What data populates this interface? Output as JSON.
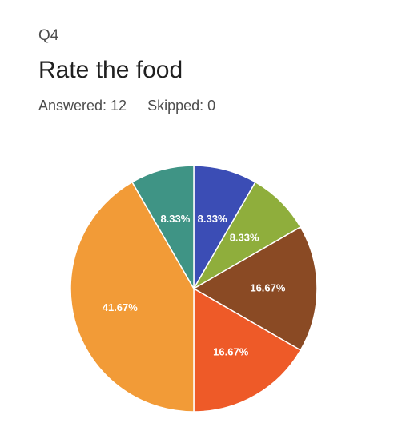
{
  "question": {
    "number": "Q4",
    "title": "Rate the food",
    "answered_label": "Answered: 12",
    "skipped_label": "Skipped: 0"
  },
  "chart_data": {
    "type": "pie",
    "start_angle_deg": 0,
    "direction": "clockwise",
    "slices": [
      {
        "label": "8.33%",
        "value": 8.33,
        "color": "#3b4db5"
      },
      {
        "label": "8.33%",
        "value": 8.33,
        "color": "#8fae3c"
      },
      {
        "label": "16.67%",
        "value": 16.67,
        "color": "#8a4a24"
      },
      {
        "label": "16.67%",
        "value": 16.67,
        "color": "#ee5a28"
      },
      {
        "label": "41.67%",
        "value": 41.67,
        "color": "#f29b37"
      },
      {
        "label": "8.33%",
        "value": 8.33,
        "color": "#3f9485"
      }
    ]
  }
}
